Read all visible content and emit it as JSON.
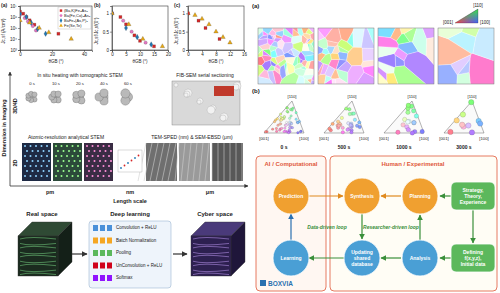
{
  "chart_data": [
    {
      "type": "scatter",
      "label": "(a)",
      "x_label": "θGB (°)",
      "y_label": "Jc,sf (A/cm²)",
      "log": "y",
      "xlim": [
        0,
        45
      ],
      "xticks": [
        0,
        20,
        40
      ],
      "ylim": [
        1000,
        10000000
      ],
      "yticks": [
        {
          "value": 1000,
          "label": "10³"
        },
        {
          "value": 10000,
          "label": "10⁴"
        },
        {
          "value": 100000,
          "label": "10⁵"
        },
        {
          "value": 1000000,
          "label": "10⁶"
        },
        {
          "value": 10000000,
          "label": "10⁷"
        }
      ],
      "legend": "upper right",
      "series": [
        {
          "name": "(Ba,K)Fe₂As₂",
          "color": "#d62728",
          "marker": "square",
          "x": [
            0,
            2,
            4,
            6,
            9,
            24
          ],
          "values": [
            3000000,
            2000000,
            1000000,
            500000,
            200000,
            30000
          ]
        },
        {
          "name": "Ba(Fe,Co)₂As₂",
          "color": "#e377c2",
          "marker": "circle",
          "x": [
            0,
            3,
            5,
            8,
            10
          ],
          "values": [
            1500000,
            800000,
            400000,
            150000,
            60000
          ]
        },
        {
          "name": "BaFe₂(As,P)₂",
          "color": "#1f77b4",
          "marker": "diamond",
          "x": [
            0,
            4,
            7,
            11,
            16
          ],
          "values": [
            2000000,
            1000000,
            300000,
            80000,
            30000
          ]
        },
        {
          "name": "Fe(Se,Te)",
          "color": "#e6a817",
          "marker": "triangle",
          "x": [
            0,
            6,
            12,
            18,
            32
          ],
          "values": [
            500000,
            300000,
            100000,
            40000,
            10000
          ]
        }
      ]
    },
    {
      "type": "scatter",
      "label": "(b)",
      "x_label": "θGB (°)",
      "y_label": "Jc,sf/Jc,sf(0°)",
      "xlim": [
        0,
        20
      ],
      "xticks": [
        0,
        5,
        10,
        15,
        20
      ],
      "ylim": [
        0,
        1.2
      ],
      "yticks": [
        0,
        0.5,
        1
      ],
      "series": [
        {
          "color": "#d62728",
          "marker": "square",
          "x": [
            0,
            3,
            5,
            8,
            10,
            15
          ],
          "values": [
            1,
            0.9,
            0.7,
            0.4,
            0.25,
            0.1
          ]
        },
        {
          "color": "#e377c2",
          "marker": "circle",
          "x": [
            0,
            4,
            7,
            12
          ],
          "values": [
            1,
            0.8,
            0.5,
            0.2
          ]
        },
        {
          "color": "#1f77b4",
          "marker": "diamond",
          "x": [
            0,
            5,
            9,
            14
          ],
          "values": [
            1,
            0.6,
            0.35,
            0.15
          ]
        },
        {
          "color": "#e6a817",
          "marker": "triangle",
          "x": [
            0,
            6,
            11,
            18
          ],
          "values": [
            1,
            0.7,
            0.3,
            0.1
          ]
        }
      ]
    },
    {
      "type": "scatter",
      "label": "(c)",
      "x_label": "θGB (°)",
      "y_label": "Jc,sf/Jc,sf(0°)",
      "xlim": [
        0,
        16
      ],
      "xticks": [
        0,
        4,
        8,
        12,
        16
      ],
      "ylim": [
        0,
        1.2
      ],
      "yticks": [
        0,
        0.5,
        1
      ],
      "series": [
        {
          "color": "#e6a817",
          "marker": "triangle",
          "x": [
            0,
            2,
            4,
            6,
            8,
            10,
            12
          ],
          "values": [
            1,
            0.95,
            0.85,
            0.7,
            0.5,
            0.35,
            0.2
          ]
        },
        {
          "color": "#d62728",
          "marker": "square",
          "x": [
            0,
            3,
            5,
            9
          ],
          "values": [
            1,
            0.8,
            0.6,
            0.3
          ]
        }
      ]
    }
  ],
  "imaging_diagram": {
    "y_axis": "Dimension in imaging",
    "y_levels": [
      "3D/4D",
      "2D"
    ],
    "x_axis": "Length scale",
    "x_levels": [
      "pm",
      "nm",
      "μm"
    ],
    "panels": [
      {
        "label": "In situ heating with tomographic STEM",
        "times": [
          "0 s",
          "10 s",
          "20 s",
          "40 s",
          "60 s"
        ]
      },
      {
        "label": "FIB-SEM serial sectioning"
      },
      {
        "label": "Atomic-resolution analytical STEM"
      },
      {
        "label": "TEM-SPED (nm) & SEM-EBSD (μm)"
      }
    ]
  },
  "deep_learning": {
    "input": "Real space",
    "model": "Deep learning",
    "output": "Cyber space",
    "layers": [
      {
        "name": "Convolution + ReLU",
        "color": "#4a90d9"
      },
      {
        "name": "Batch Normalization",
        "color": "#f5a623"
      },
      {
        "name": "Pooling",
        "color": "#5cb85c"
      },
      {
        "name": "UnConvolution + ReLU",
        "color": "#d0021b"
      },
      {
        "name": "Softmax",
        "color": "#9013fe"
      }
    ]
  },
  "grain_growth": {
    "label": "(a)",
    "orientation_key": [
      "[110]",
      "[001]",
      "[100]"
    ],
    "ipf_label": "(b)",
    "ipf_axes": [
      "[110]",
      "[001]",
      "[100]"
    ],
    "times": [
      "0 s",
      "500 s",
      "1000 s",
      "3000 s"
    ]
  },
  "workflow": {
    "groups": [
      {
        "label": "AI / Computational",
        "color": "#e0583a"
      },
      {
        "label": "Human / Experimental",
        "color": "#e0583a"
      }
    ],
    "nodes": [
      {
        "lines": [
          "Prediction"
        ],
        "color": "#f0a030"
      },
      {
        "lines": [
          "Learning"
        ],
        "color": "#4a9fd5"
      },
      {
        "lines": [
          "Synthesis"
        ],
        "color": "#f0a030"
      },
      {
        "lines": [
          "Planning"
        ],
        "color": "#f0a030"
      },
      {
        "lines": [
          "Strategy,",
          "Theory,",
          "Experience"
        ],
        "color": "#5cb85c"
      },
      {
        "lines": [
          "Updating",
          "shared",
          "database"
        ],
        "color": "#4a9fd5"
      },
      {
        "lines": [
          "Analysis"
        ],
        "color": "#4a9fd5"
      },
      {
        "lines": [
          "Defining",
          "f(x,y,z),",
          "Initial data"
        ],
        "color": "#5cb85c"
      }
    ],
    "loops": [
      "Data-driven loop",
      "Researcher-driven loop"
    ],
    "logo": "BOXVIA"
  }
}
